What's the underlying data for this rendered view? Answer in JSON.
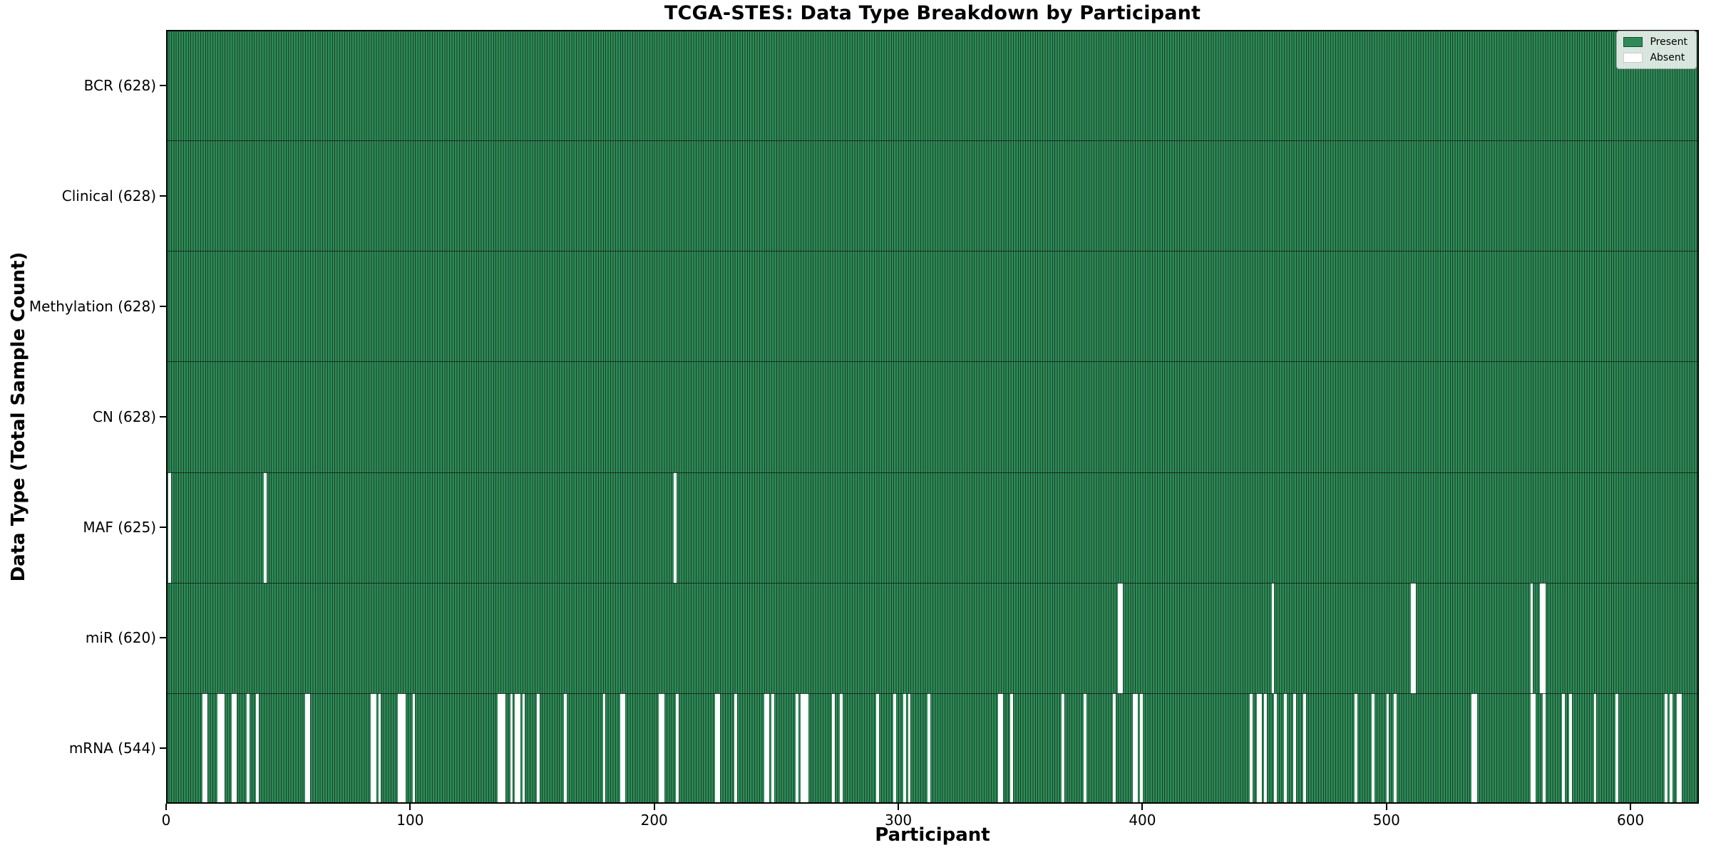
{
  "chart_data": {
    "type": "heatmap",
    "title": "TCGA-STES: Data Type Breakdown by Participant",
    "xlabel": "Participant",
    "ylabel": "Data Type (Total Sample Count)",
    "x_ticks": [
      0,
      100,
      200,
      300,
      400,
      500,
      600
    ],
    "n_participants": 628,
    "grid": false,
    "legend": {
      "position": "upper-right",
      "items": [
        {
          "label": "Present",
          "color": "#2e8b57"
        },
        {
          "label": "Absent",
          "color": "#ffffff"
        }
      ]
    },
    "colors": {
      "present": "#2e8b57",
      "absent": "#ffffff",
      "bar_edge": "#16402a",
      "row_separator": "#1a1a1a",
      "axis": "#000000",
      "text": "#000000"
    },
    "rows": [
      {
        "label": "BCR (628)",
        "data_type": "BCR",
        "present_count": 628,
        "absent_participants": []
      },
      {
        "label": "Clinical (628)",
        "data_type": "Clinical",
        "present_count": 628,
        "absent_participants": []
      },
      {
        "label": "Methylation (628)",
        "data_type": "Methylation",
        "present_count": 628,
        "absent_participants": []
      },
      {
        "label": "CN (628)",
        "data_type": "CN",
        "present_count": 628,
        "absent_participants": []
      },
      {
        "label": "MAF (625)",
        "data_type": "MAF",
        "present_count": 625,
        "absent_participants": [
          1,
          40,
          208
        ]
      },
      {
        "label": "miR (620)",
        "data_type": "miR",
        "present_count": 620,
        "absent_participants": [
          390,
          391,
          453,
          510,
          511,
          559,
          563,
          564
        ]
      },
      {
        "label": "mRNA (544)",
        "data_type": "mRNA",
        "present_count": 544,
        "absent_participants": [
          15,
          16,
          21,
          22,
          23,
          27,
          28,
          33,
          37,
          57,
          58,
          84,
          85,
          87,
          95,
          96,
          97,
          101,
          136,
          137,
          138,
          141,
          143,
          144,
          146,
          152,
          163,
          179,
          186,
          187,
          202,
          203,
          209,
          225,
          226,
          233,
          245,
          246,
          248,
          258,
          260,
          261,
          262,
          273,
          276,
          291,
          298,
          302,
          304,
          312,
          341,
          342,
          346,
          367,
          376,
          388,
          396,
          397,
          399,
          444,
          447,
          448,
          450,
          454,
          458,
          462,
          466,
          487,
          494,
          500,
          503,
          535,
          536,
          559,
          560,
          564,
          572,
          575,
          585,
          594,
          614,
          616,
          619,
          620
        ]
      }
    ]
  }
}
